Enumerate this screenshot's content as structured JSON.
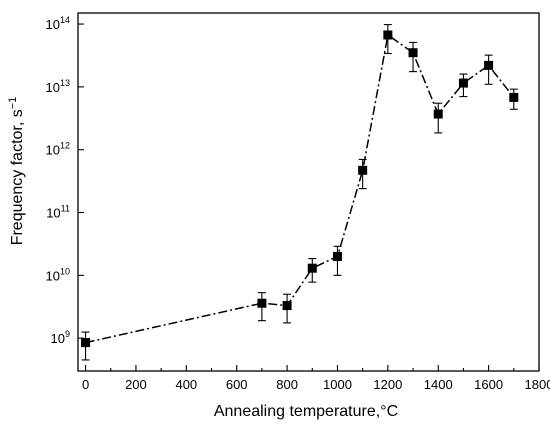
{
  "chart_data": {
    "type": "scatter",
    "xlabel": "Annealing temperature,°C",
    "ylabel": "Frequency factor, s",
    "ylabel_exponent": "−1",
    "xlim": [
      -30,
      1800
    ],
    "ylim": [
      300000000.0,
      150000000000000.0
    ],
    "yscale": "log",
    "grid": false,
    "line_style": "dash-dot",
    "marker": "filled-square",
    "color": "#000000",
    "x_ticks": [
      0,
      200,
      400,
      600,
      800,
      1000,
      1200,
      1400,
      1600,
      1800
    ],
    "y_ticks": [
      {
        "value": 1000000000.0,
        "mantissa": "10",
        "exponent": "9"
      },
      {
        "value": 10000000000.0,
        "mantissa": "10",
        "exponent": "10"
      },
      {
        "value": 100000000000.0,
        "mantissa": "10",
        "exponent": "11"
      },
      {
        "value": 1000000000000.0,
        "mantissa": "10",
        "exponent": "12"
      },
      {
        "value": 10000000000000.0,
        "mantissa": "10",
        "exponent": "13"
      },
      {
        "value": 100000000000000.0,
        "mantissa": "10",
        "exponent": "14"
      }
    ],
    "series": [
      {
        "x": [
          0,
          700,
          800,
          900,
          1000,
          1100,
          1200,
          1300,
          1400,
          1500,
          1600,
          1700
        ],
        "y": [
          850000000.0,
          3600000000.0,
          3300000000.0,
          13000000000.0,
          20000000000.0,
          470000000000.0,
          67000000000000.0,
          35000000000000.0,
          3700000000000.0,
          11500000000000.0,
          22000000000000.0,
          6800000000000.0
        ],
        "y_low": [
          450000000.0,
          1900000000.0,
          1750000000.0,
          7800000000.0,
          10000000000.0,
          240000000000.0,
          34000000000000.0,
          17500000000000.0,
          1850000000000.0,
          7000000000000.0,
          11000000000000.0,
          4400000000000.0
        ],
        "y_high": [
          1250000000.0,
          5300000000.0,
          5000000000.0,
          18500000000.0,
          29000000000.0,
          700000000000.0,
          98000000000000.0,
          51000000000000.0,
          5500000000000.0,
          16000000000000.0,
          32000000000000.0,
          9200000000000.0
        ]
      }
    ]
  }
}
